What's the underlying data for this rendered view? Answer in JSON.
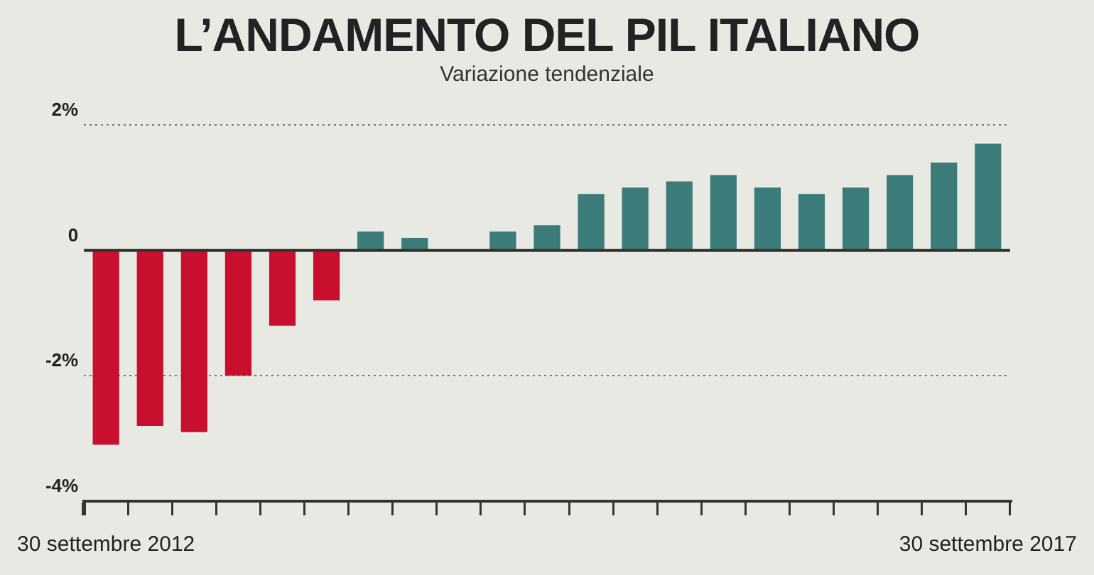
{
  "chart_data": {
    "type": "bar",
    "title": "L’ANDAMENTO DEL PIL ITALIANO",
    "subtitle": "Variazione tendenziale",
    "categories": [
      "30 settembre 2012",
      null,
      null,
      null,
      null,
      null,
      null,
      null,
      null,
      null,
      null,
      null,
      null,
      null,
      null,
      null,
      null,
      null,
      null,
      null,
      "30 settembre 2017"
    ],
    "values": [
      -3.1,
      -2.8,
      -2.9,
      -2.0,
      -1.2,
      -0.8,
      0.3,
      0.2,
      0,
      0.3,
      0.4,
      0.9,
      1.0,
      1.1,
      1.2,
      1.0,
      0.9,
      1.0,
      1.2,
      1.4,
      1.7
    ],
    "colors": [
      "#c8102e",
      "#c8102e",
      "#c8102e",
      "#c8102e",
      "#c8102e",
      "#c8102e",
      "#3b7b79",
      "#3b7b79",
      "#3b7b79",
      "#3b7b79",
      "#3b7b79",
      "#3b7b79",
      "#3b7b79",
      "#3b7b79",
      "#3b7b79",
      "#3b7b79",
      "#3b7b79",
      "#3b7b79",
      "#3b7b79",
      "#3b7b79",
      "#3b7b79"
    ],
    "ylim": [
      -4,
      2
    ],
    "yticks": [
      {
        "value": -4,
        "label": "-4%"
      },
      {
        "value": -2,
        "label": "-2%"
      },
      0,
      {
        "value": 2,
        "label": "2%"
      }
    ],
    "ref_lines": [
      {
        "axis": "y",
        "value": 0,
        "color": "#333333"
      }
    ],
    "grid": "y",
    "legend": false
  }
}
